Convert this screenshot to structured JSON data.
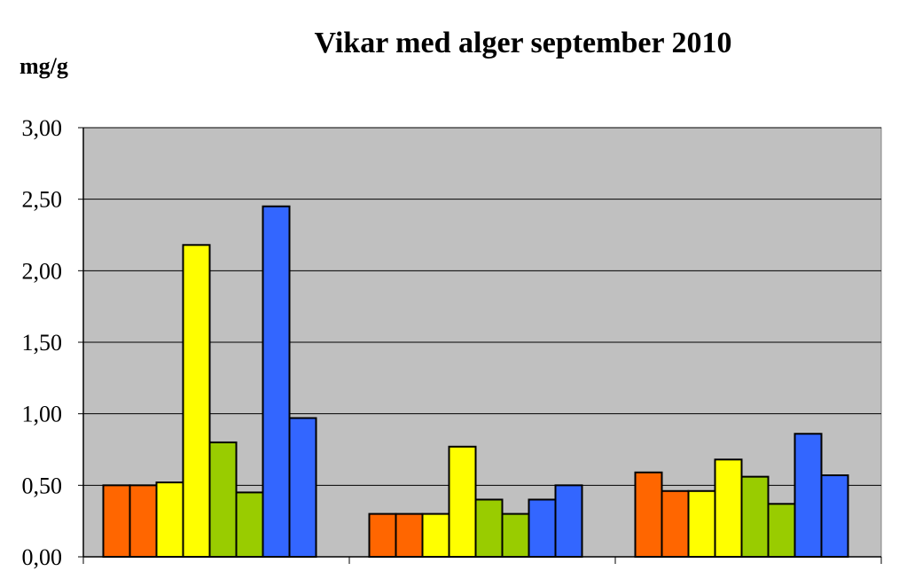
{
  "chart_data": {
    "type": "bar",
    "title": "Vikar med alger september 2010",
    "xlabel": "",
    "ylabel": "mg/g",
    "ylim": [
      0,
      3
    ],
    "yticks": [
      "0,00",
      "0,50",
      "1,00",
      "1,50",
      "2,00",
      "2,50",
      "3,00"
    ],
    "grid": true,
    "categories": [
      "",
      "",
      ""
    ],
    "series": [
      {
        "color": "#ff6600",
        "values": [
          0.5,
          0.3,
          0.59
        ]
      },
      {
        "color": "#ff6600",
        "values": [
          0.5,
          0.3,
          0.46
        ]
      },
      {
        "color": "#ffff00",
        "values": [
          0.52,
          0.3,
          0.46
        ]
      },
      {
        "color": "#ffff00",
        "values": [
          2.18,
          0.77,
          0.68
        ]
      },
      {
        "color": "#99cc00",
        "values": [
          0.8,
          0.4,
          0.56
        ]
      },
      {
        "color": "#99cc00",
        "values": [
          0.45,
          0.3,
          0.37
        ]
      },
      {
        "color": "#3366ff",
        "values": [
          2.45,
          0.4,
          0.86
        ]
      },
      {
        "color": "#3366ff",
        "values": [
          0.97,
          0.5,
          0.57
        ]
      }
    ],
    "colors": {
      "plot_background": "#c0c0c0",
      "gridline": "#000000",
      "bar_outline": "#000000"
    }
  }
}
